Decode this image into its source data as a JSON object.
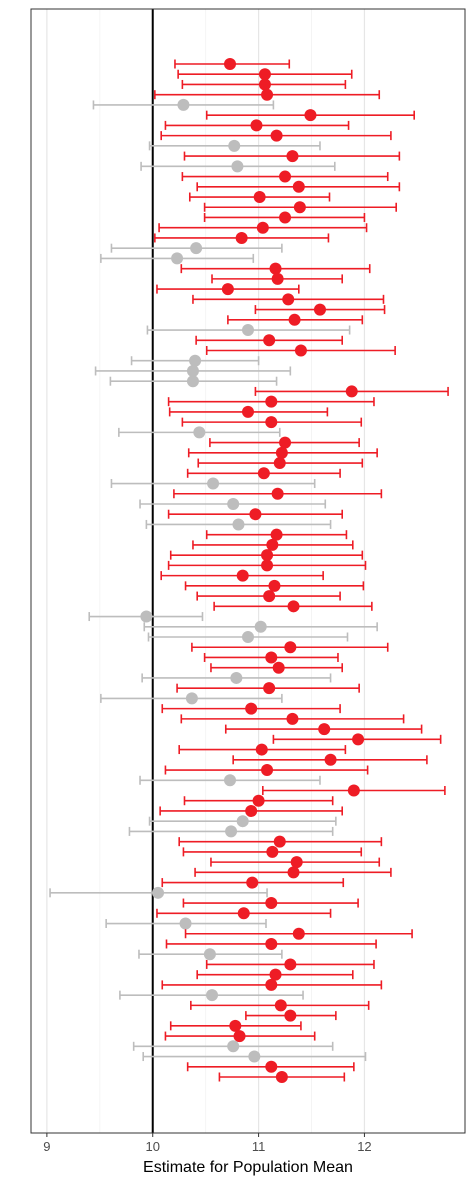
{
  "chart_data": {
    "type": "scatter",
    "title": "",
    "xlabel": "Estimate for Population Mean",
    "ylabel": "",
    "xlim": [
      8.85,
      12.95
    ],
    "xticks": [
      9,
      10,
      11,
      12
    ],
    "reference_line": 10,
    "grid": "vertical major and minor lines",
    "legend": "none",
    "colors": {
      "covers": "#bdbdbd",
      "misses": "#ee1c25",
      "reference": "#000000"
    },
    "intervals": [
      {
        "mean": 10.73,
        "lower": 10.21,
        "upper": 11.29,
        "covers": false
      },
      {
        "mean": 11.06,
        "lower": 10.24,
        "upper": 11.88,
        "covers": false
      },
      {
        "mean": 11.06,
        "lower": 10.28,
        "upper": 11.82,
        "covers": false
      },
      {
        "mean": 11.08,
        "lower": 10.02,
        "upper": 12.14,
        "covers": false
      },
      {
        "mean": 10.29,
        "lower": 9.44,
        "upper": 11.14,
        "covers": true
      },
      {
        "mean": 11.49,
        "lower": 10.51,
        "upper": 12.47,
        "covers": false
      },
      {
        "mean": 10.98,
        "lower": 10.12,
        "upper": 11.85,
        "covers": false
      },
      {
        "mean": 11.17,
        "lower": 10.08,
        "upper": 12.25,
        "covers": false
      },
      {
        "mean": 10.77,
        "lower": 9.97,
        "upper": 11.58,
        "covers": true
      },
      {
        "mean": 11.32,
        "lower": 10.3,
        "upper": 12.33,
        "covers": false
      },
      {
        "mean": 10.8,
        "lower": 9.89,
        "upper": 11.72,
        "covers": true
      },
      {
        "mean": 11.25,
        "lower": 10.28,
        "upper": 12.22,
        "covers": false
      },
      {
        "mean": 11.38,
        "lower": 10.42,
        "upper": 12.33,
        "covers": false
      },
      {
        "mean": 11.01,
        "lower": 10.35,
        "upper": 11.67,
        "covers": false
      },
      {
        "mean": 11.39,
        "lower": 10.49,
        "upper": 12.3,
        "covers": false
      },
      {
        "mean": 11.25,
        "lower": 10.49,
        "upper": 12.0,
        "covers": false
      },
      {
        "mean": 11.04,
        "lower": 10.06,
        "upper": 12.02,
        "covers": false
      },
      {
        "mean": 10.84,
        "lower": 10.02,
        "upper": 11.66,
        "covers": false
      },
      {
        "mean": 10.41,
        "lower": 9.61,
        "upper": 11.22,
        "covers": true
      },
      {
        "mean": 10.23,
        "lower": 9.51,
        "upper": 10.95,
        "covers": true
      },
      {
        "mean": 11.16,
        "lower": 10.27,
        "upper": 12.05,
        "covers": false
      },
      {
        "mean": 11.18,
        "lower": 10.56,
        "upper": 11.79,
        "covers": false
      },
      {
        "mean": 10.71,
        "lower": 10.04,
        "upper": 11.38,
        "covers": false
      },
      {
        "mean": 11.28,
        "lower": 10.38,
        "upper": 12.18,
        "covers": false
      },
      {
        "mean": 11.58,
        "lower": 10.97,
        "upper": 12.19,
        "covers": false
      },
      {
        "mean": 11.34,
        "lower": 10.71,
        "upper": 11.98,
        "covers": false
      },
      {
        "mean": 10.9,
        "lower": 9.95,
        "upper": 11.86,
        "covers": true
      },
      {
        "mean": 11.1,
        "lower": 10.41,
        "upper": 11.79,
        "covers": false
      },
      {
        "mean": 11.4,
        "lower": 10.51,
        "upper": 12.29,
        "covers": false
      },
      {
        "mean": 10.4,
        "lower": 9.8,
        "upper": 11.0,
        "covers": true
      },
      {
        "mean": 10.38,
        "lower": 9.46,
        "upper": 11.3,
        "covers": true
      },
      {
        "mean": 10.38,
        "lower": 9.6,
        "upper": 11.17,
        "covers": true
      },
      {
        "mean": 11.88,
        "lower": 10.97,
        "upper": 12.79,
        "covers": false
      },
      {
        "mean": 11.12,
        "lower": 10.15,
        "upper": 12.09,
        "covers": false
      },
      {
        "mean": 10.9,
        "lower": 10.16,
        "upper": 11.65,
        "covers": false
      },
      {
        "mean": 11.12,
        "lower": 10.28,
        "upper": 11.97,
        "covers": false
      },
      {
        "mean": 10.44,
        "lower": 9.68,
        "upper": 11.2,
        "covers": true
      },
      {
        "mean": 11.25,
        "lower": 10.54,
        "upper": 11.95,
        "covers": false
      },
      {
        "mean": 11.22,
        "lower": 10.34,
        "upper": 12.12,
        "covers": false
      },
      {
        "mean": 11.2,
        "lower": 10.43,
        "upper": 11.98,
        "covers": false
      },
      {
        "mean": 11.05,
        "lower": 10.33,
        "upper": 11.77,
        "covers": false
      },
      {
        "mean": 10.57,
        "lower": 9.61,
        "upper": 11.53,
        "covers": true
      },
      {
        "mean": 11.18,
        "lower": 10.2,
        "upper": 12.16,
        "covers": false
      },
      {
        "mean": 10.76,
        "lower": 9.88,
        "upper": 11.63,
        "covers": true
      },
      {
        "mean": 10.97,
        "lower": 10.15,
        "upper": 11.79,
        "covers": false
      },
      {
        "mean": 10.81,
        "lower": 9.94,
        "upper": 11.68,
        "covers": true
      },
      {
        "mean": 11.17,
        "lower": 10.51,
        "upper": 11.83,
        "covers": false
      },
      {
        "mean": 11.13,
        "lower": 10.38,
        "upper": 11.89,
        "covers": false
      },
      {
        "mean": 11.08,
        "lower": 10.17,
        "upper": 11.98,
        "covers": false
      },
      {
        "mean": 11.08,
        "lower": 10.15,
        "upper": 12.01,
        "covers": false
      },
      {
        "mean": 10.85,
        "lower": 10.08,
        "upper": 11.61,
        "covers": false
      },
      {
        "mean": 11.15,
        "lower": 10.31,
        "upper": 11.99,
        "covers": false
      },
      {
        "mean": 11.1,
        "lower": 10.42,
        "upper": 11.77,
        "covers": false
      },
      {
        "mean": 11.33,
        "lower": 10.58,
        "upper": 12.07,
        "covers": false
      },
      {
        "mean": 9.94,
        "lower": 9.4,
        "upper": 10.47,
        "covers": true
      },
      {
        "mean": 11.02,
        "lower": 9.92,
        "upper": 12.12,
        "covers": true
      },
      {
        "mean": 10.9,
        "lower": 9.96,
        "upper": 11.84,
        "covers": true
      },
      {
        "mean": 11.3,
        "lower": 10.37,
        "upper": 12.22,
        "covers": false
      },
      {
        "mean": 11.12,
        "lower": 10.49,
        "upper": 11.75,
        "covers": false
      },
      {
        "mean": 11.19,
        "lower": 10.55,
        "upper": 11.79,
        "covers": false
      },
      {
        "mean": 10.79,
        "lower": 9.9,
        "upper": 11.68,
        "covers": true
      },
      {
        "mean": 11.1,
        "lower": 10.23,
        "upper": 11.95,
        "covers": false
      },
      {
        "mean": 10.37,
        "lower": 9.51,
        "upper": 11.22,
        "covers": true
      },
      {
        "mean": 10.93,
        "lower": 10.09,
        "upper": 11.77,
        "covers": false
      },
      {
        "mean": 11.32,
        "lower": 10.27,
        "upper": 12.37,
        "covers": false
      },
      {
        "mean": 11.62,
        "lower": 10.69,
        "upper": 12.54,
        "covers": false
      },
      {
        "mean": 11.94,
        "lower": 11.14,
        "upper": 12.72,
        "covers": false
      },
      {
        "mean": 11.03,
        "lower": 10.25,
        "upper": 11.82,
        "covers": false
      },
      {
        "mean": 11.68,
        "lower": 10.76,
        "upper": 12.59,
        "covers": false
      },
      {
        "mean": 11.08,
        "lower": 10.12,
        "upper": 12.03,
        "covers": false
      },
      {
        "mean": 10.73,
        "lower": 9.88,
        "upper": 11.58,
        "covers": true
      },
      {
        "mean": 11.9,
        "lower": 11.04,
        "upper": 12.76,
        "covers": false
      },
      {
        "mean": 11.0,
        "lower": 10.3,
        "upper": 11.7,
        "covers": false
      },
      {
        "mean": 10.93,
        "lower": 10.07,
        "upper": 11.79,
        "covers": false
      },
      {
        "mean": 10.85,
        "lower": 9.97,
        "upper": 11.73,
        "covers": true
      },
      {
        "mean": 10.74,
        "lower": 9.78,
        "upper": 11.7,
        "covers": true
      },
      {
        "mean": 11.2,
        "lower": 10.25,
        "upper": 12.16,
        "covers": false
      },
      {
        "mean": 11.13,
        "lower": 10.29,
        "upper": 11.97,
        "covers": false
      },
      {
        "mean": 11.36,
        "lower": 10.55,
        "upper": 12.14,
        "covers": false
      },
      {
        "mean": 11.33,
        "lower": 10.4,
        "upper": 12.25,
        "covers": false
      },
      {
        "mean": 10.94,
        "lower": 10.09,
        "upper": 11.8,
        "covers": false
      },
      {
        "mean": 10.05,
        "lower": 9.03,
        "upper": 11.08,
        "covers": true
      },
      {
        "mean": 11.12,
        "lower": 10.29,
        "upper": 11.94,
        "covers": false
      },
      {
        "mean": 10.86,
        "lower": 10.04,
        "upper": 11.68,
        "covers": false
      },
      {
        "mean": 10.31,
        "lower": 9.56,
        "upper": 11.07,
        "covers": true
      },
      {
        "mean": 11.38,
        "lower": 10.31,
        "upper": 12.45,
        "covers": false
      },
      {
        "mean": 11.12,
        "lower": 10.13,
        "upper": 12.11,
        "covers": false
      },
      {
        "mean": 10.54,
        "lower": 9.87,
        "upper": 11.22,
        "covers": true
      },
      {
        "mean": 11.3,
        "lower": 10.51,
        "upper": 12.09,
        "covers": false
      },
      {
        "mean": 11.16,
        "lower": 10.42,
        "upper": 11.89,
        "covers": false
      },
      {
        "mean": 11.12,
        "lower": 10.09,
        "upper": 12.16,
        "covers": false
      },
      {
        "mean": 10.56,
        "lower": 9.69,
        "upper": 11.42,
        "covers": true
      },
      {
        "mean": 11.21,
        "lower": 10.36,
        "upper": 12.04,
        "covers": false
      },
      {
        "mean": 11.3,
        "lower": 10.88,
        "upper": 11.73,
        "covers": false
      },
      {
        "mean": 10.78,
        "lower": 10.17,
        "upper": 11.4,
        "covers": false
      },
      {
        "mean": 10.82,
        "lower": 10.12,
        "upper": 11.53,
        "covers": false
      },
      {
        "mean": 10.76,
        "lower": 9.82,
        "upper": 11.7,
        "covers": true
      },
      {
        "mean": 10.96,
        "lower": 9.91,
        "upper": 12.01,
        "covers": true
      },
      {
        "mean": 11.12,
        "lower": 10.33,
        "upper": 11.9,
        "covers": false
      },
      {
        "mean": 11.22,
        "lower": 10.63,
        "upper": 11.81,
        "covers": false
      }
    ]
  }
}
